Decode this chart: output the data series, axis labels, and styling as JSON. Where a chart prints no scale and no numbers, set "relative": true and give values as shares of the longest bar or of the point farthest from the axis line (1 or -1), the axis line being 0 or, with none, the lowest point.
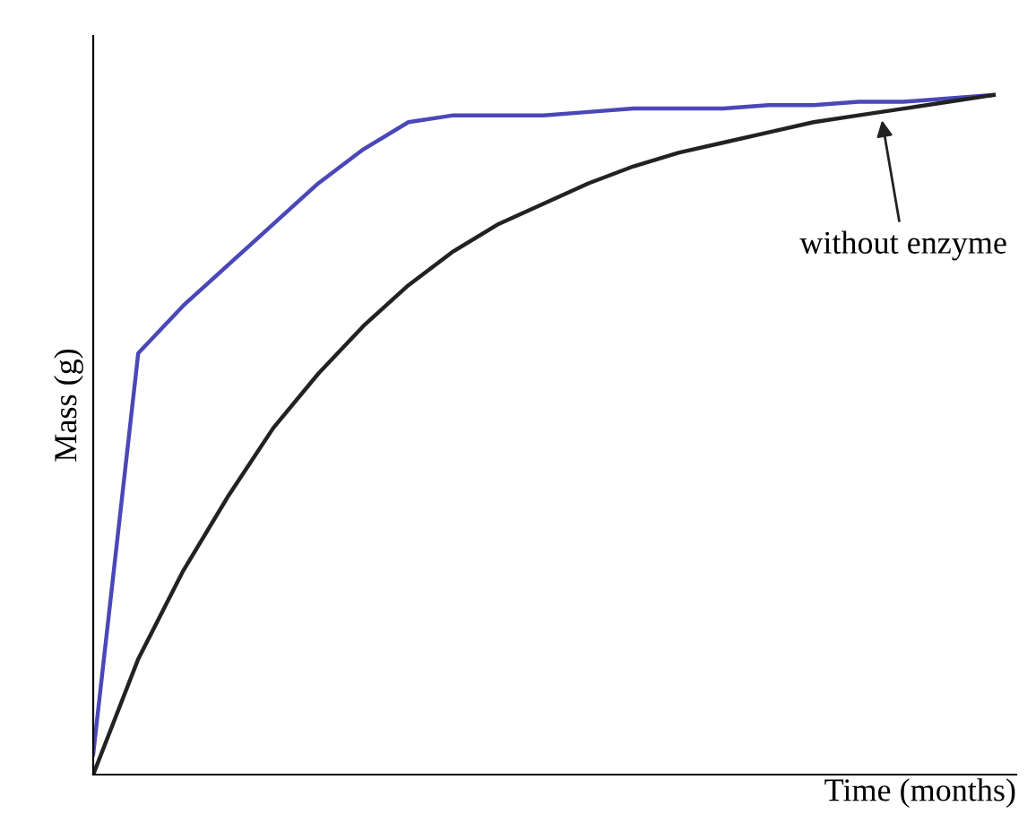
{
  "chart_data": {
    "type": "line",
    "relative": true,
    "xlabel": "Time (months)",
    "ylabel": "Mass (g)",
    "categories": [
      null,
      null,
      null,
      null,
      null,
      null,
      null,
      null,
      null,
      null,
      null,
      null,
      null,
      null,
      null,
      null,
      null,
      null,
      null,
      null,
      null
    ],
    "series": [
      {
        "color": "#4a48b8",
        "values": [
          0.03,
          0.62,
          0.69,
          0.75,
          0.81,
          0.87,
          0.92,
          0.96,
          0.97,
          0.97,
          0.97,
          0.975,
          0.98,
          0.98,
          0.98,
          0.985,
          0.985,
          0.99,
          0.99,
          0.995,
          1.0
        ]
      },
      {
        "color": "#222222",
        "values": [
          0,
          0.17,
          0.3,
          0.41,
          0.51,
          0.59,
          0.66,
          0.72,
          0.77,
          0.81,
          0.84,
          0.87,
          0.895,
          0.915,
          0.93,
          0.945,
          0.96,
          0.97,
          0.98,
          0.99,
          1.0
        ]
      }
    ],
    "annotations": [
      "without enzyme"
    ],
    "grid": false,
    "marker": "none",
    "line_style": "solid"
  }
}
